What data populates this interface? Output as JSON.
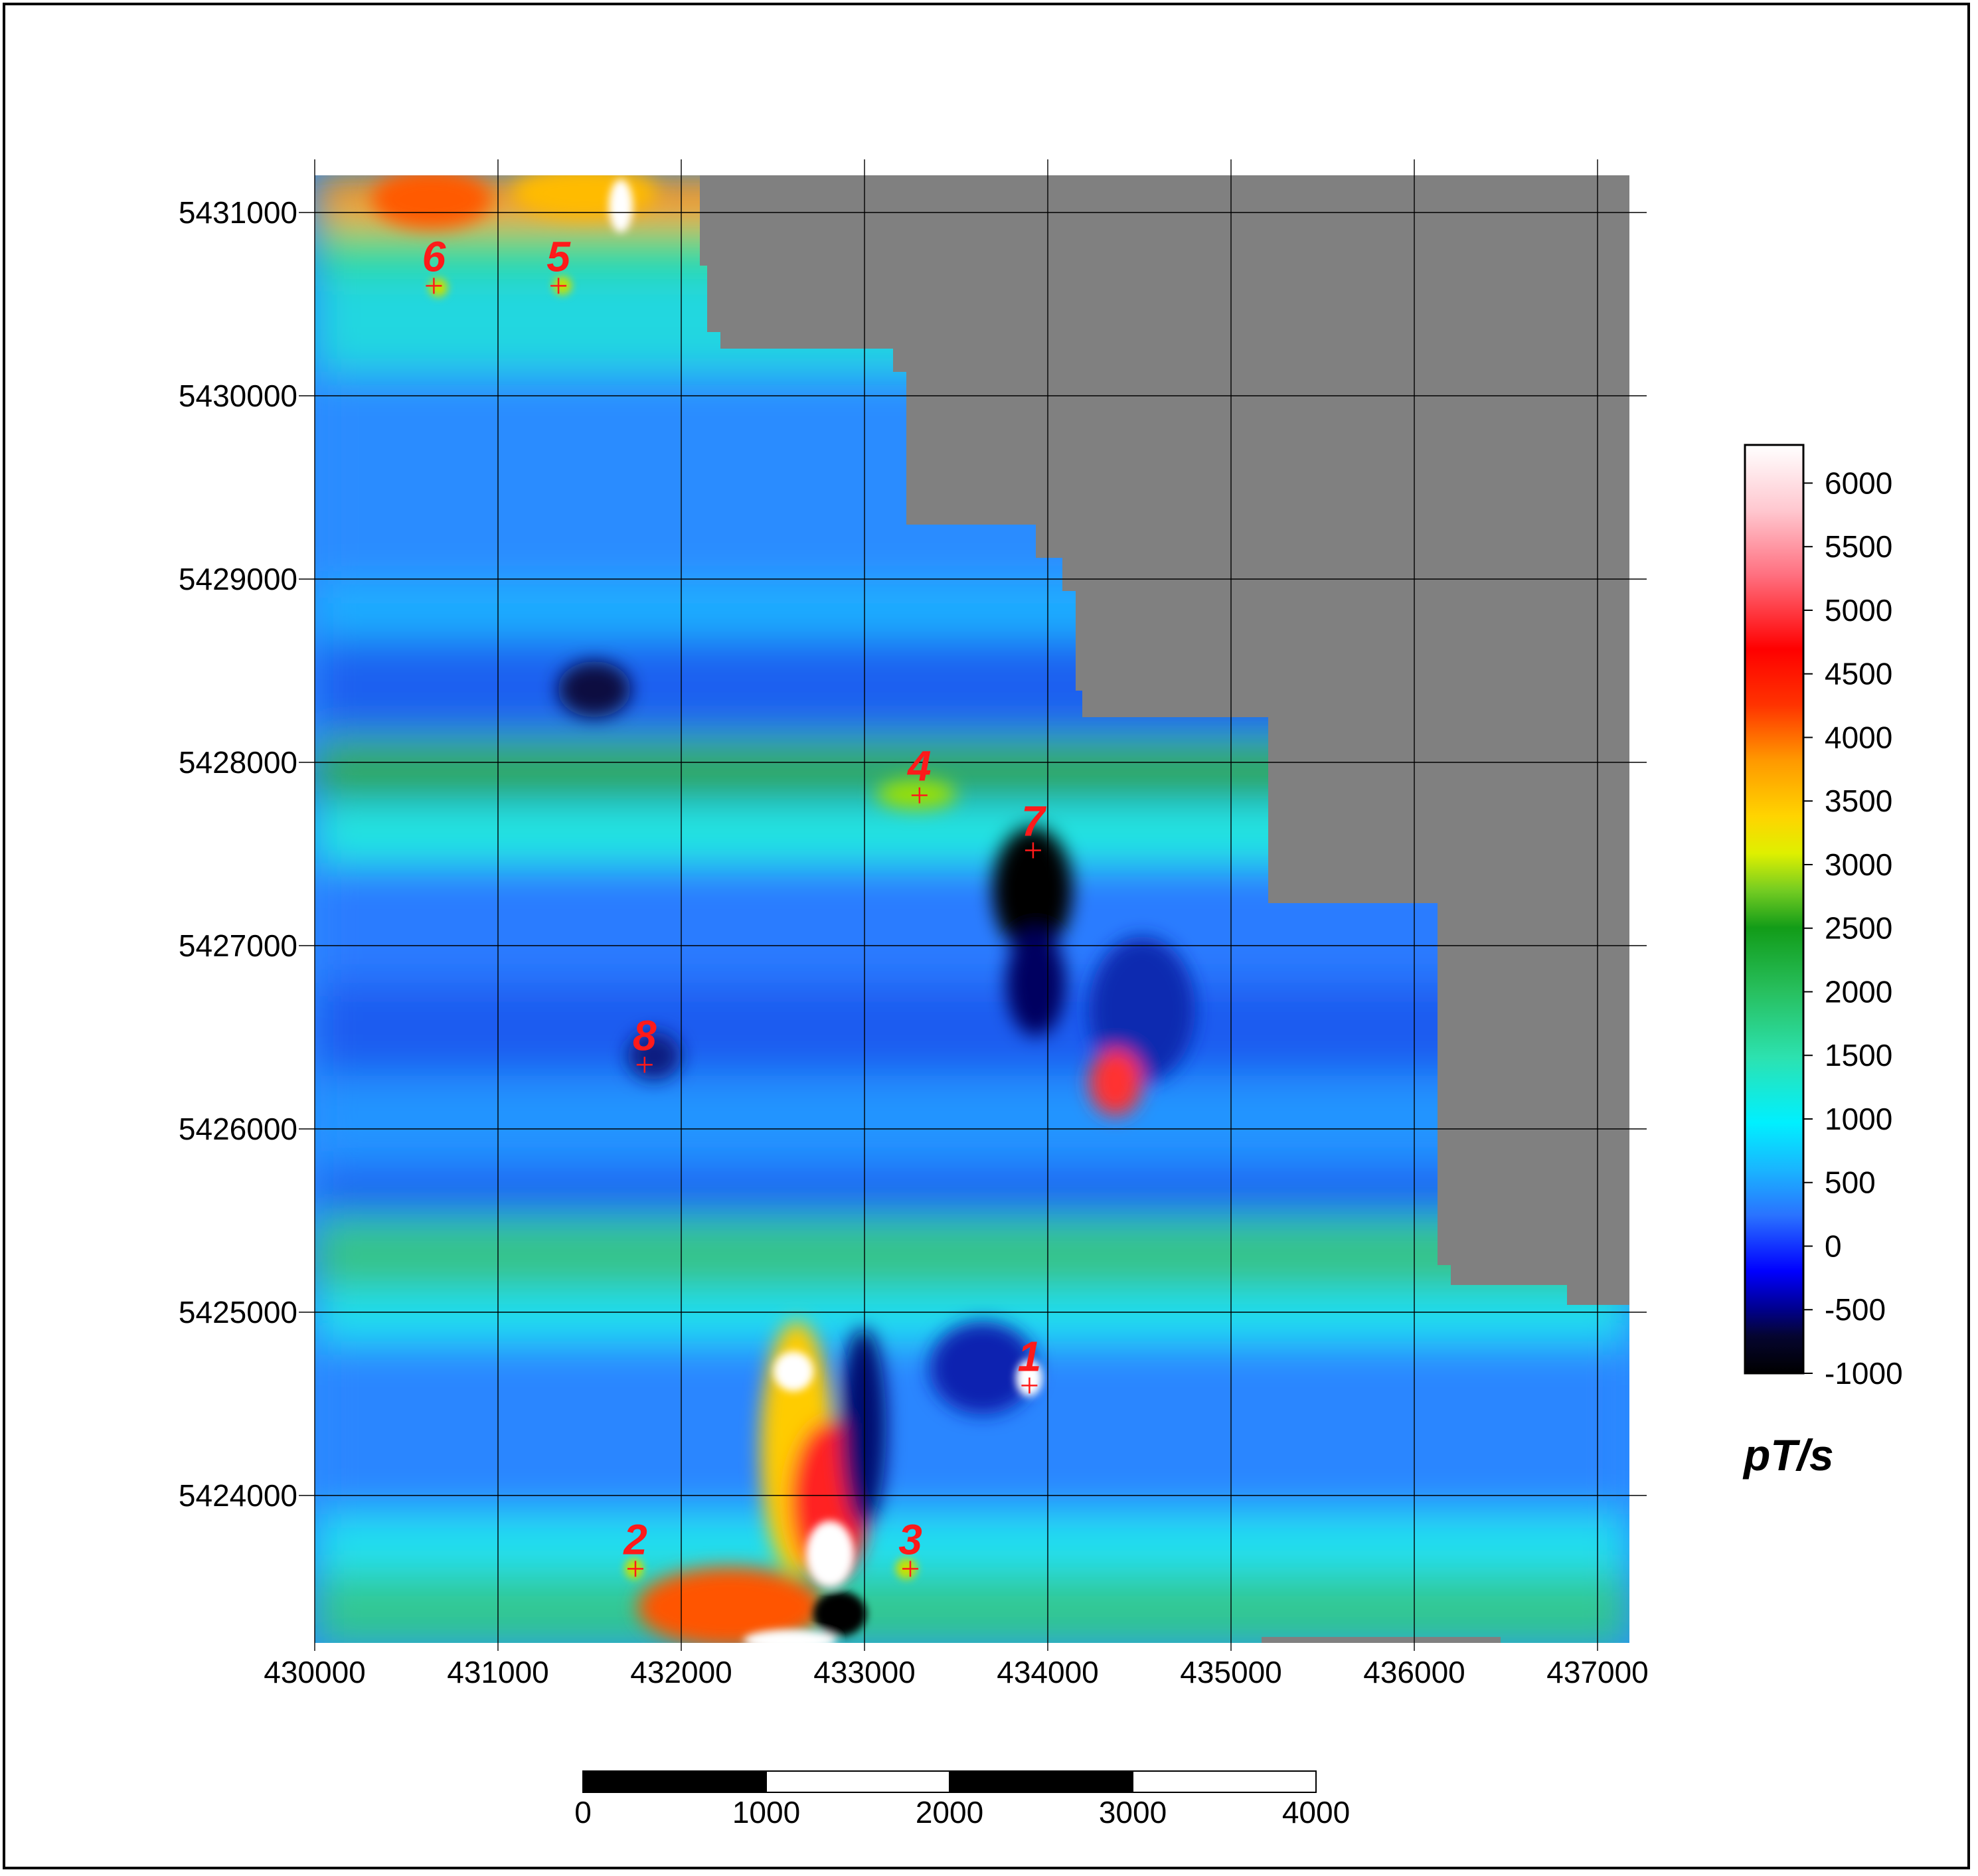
{
  "map": {
    "x_ticks": [
      "430000",
      "431000",
      "432000",
      "433000",
      "434000",
      "435000",
      "436000",
      "437000"
    ],
    "y_ticks": [
      "5431000",
      "5430000",
      "5429000",
      "5428000",
      "5427000",
      "5426000",
      "5425000",
      "5424000"
    ],
    "anomalies": [
      {
        "label": "1",
        "easting": 433900,
        "northing": 5424600
      },
      {
        "label": "2",
        "easting": 431750,
        "northing": 5423600
      },
      {
        "label": "3",
        "easting": 433250,
        "northing": 5423600
      },
      {
        "label": "4",
        "easting": 433300,
        "northing": 5427820
      },
      {
        "label": "5",
        "easting": 431330,
        "northing": 5430600
      },
      {
        "label": "6",
        "easting": 430650,
        "northing": 5430600
      },
      {
        "label": "7",
        "easting": 433920,
        "northing": 5427520
      },
      {
        "label": "8",
        "easting": 431800,
        "northing": 5426350
      }
    ]
  },
  "colorbar": {
    "ticks": [
      "6000",
      "5500",
      "5000",
      "4500",
      "4000",
      "3500",
      "3000",
      "2500",
      "2000",
      "1500",
      "1000",
      "500",
      "0",
      "-500",
      "-1000"
    ],
    "unit": "pT/s",
    "min": -1000,
    "max": 6300
  },
  "scale_bar": {
    "labels": [
      "0",
      "1000",
      "2000",
      "3000",
      "4000"
    ]
  },
  "colors": {
    "no_data": "#808080",
    "marker": "#ff1a1a"
  }
}
